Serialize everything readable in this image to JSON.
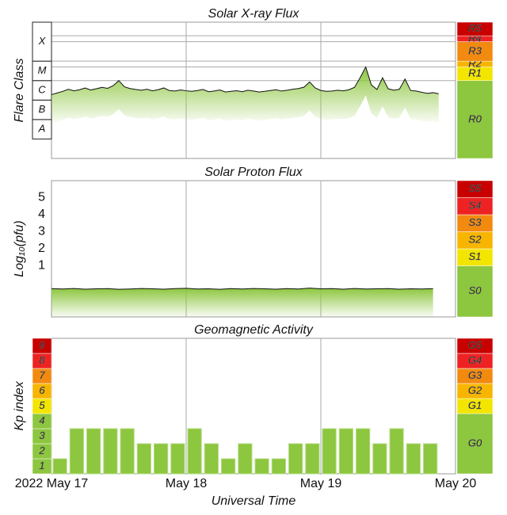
{
  "chart_data": [
    {
      "type": "line",
      "title": "Solar X-ray Flux",
      "ylabel": "Flare Class",
      "log_scale": true,
      "ylim": [
        1e-09,
        0.01
      ],
      "color": "#111111",
      "fill": "#8dc63f",
      "x": [
        0,
        1,
        2,
        3,
        4,
        5,
        6,
        7,
        8,
        9,
        10,
        11,
        12,
        13,
        14,
        15,
        16,
        17,
        18,
        19,
        20,
        21,
        22,
        23,
        24,
        25,
        26,
        27,
        28,
        29,
        30,
        31,
        32,
        33,
        34,
        35,
        36,
        37,
        38,
        39,
        40,
        41,
        42,
        43,
        44,
        45,
        46,
        47,
        48,
        49,
        50,
        51,
        52,
        53,
        54,
        55,
        56,
        57,
        58,
        59,
        60,
        61,
        62,
        63,
        64,
        65,
        66,
        67,
        68,
        69
      ],
      "values": [
        1.9e-06,
        2.3e-06,
        2.8e-06,
        3.6e-06,
        3e-06,
        3.4e-06,
        4.2e-06,
        3.3e-06,
        3.8e-06,
        4.5e-06,
        4e-06,
        5.5e-06,
        1e-05,
        4.8e-06,
        3.9e-06,
        3.5e-06,
        3.2e-06,
        3.6e-06,
        3e-06,
        3.4e-06,
        4.2e-06,
        3.1e-06,
        2.9e-06,
        3.3e-06,
        3e-06,
        2.8e-06,
        3.1e-06,
        3.5e-06,
        2.7e-06,
        2.9e-06,
        3.3e-06,
        2.6e-06,
        2.8e-06,
        3e-06,
        2.7e-06,
        3.2e-06,
        2.9e-06,
        2.6e-06,
        2.8e-06,
        3.1e-06,
        3.4e-06,
        2.9e-06,
        3.2e-06,
        3.6e-06,
        3.9e-06,
        4.6e-06,
        8.5e-06,
        4.2e-06,
        3.1e-06,
        2.8e-06,
        2.9e-06,
        3.2e-06,
        3e-06,
        3.4e-06,
        4.5e-06,
        1.4e-05,
        5e-05,
        6e-06,
        3.5e-06,
        1.4e-05,
        3.8e-06,
        3.2e-06,
        3.6e-06,
        1.2e-05,
        3.1e-06,
        2.9e-06,
        2.5e-06,
        2.2e-06,
        2.4e-06,
        2.1e-06
      ],
      "yticks": [
        {
          "value": 1e-08,
          "label": "A"
        },
        {
          "value": 1e-07,
          "label": "B"
        },
        {
          "value": 1e-06,
          "label": "C"
        },
        {
          "value": 1e-05,
          "label": "M"
        },
        {
          "value": 0.0001,
          "label": "X"
        }
      ],
      "levels": [
        {
          "label": "R0",
          "color": "#8dc63f"
        },
        {
          "label": "R1",
          "value": 1e-05,
          "color": "#f2e600"
        },
        {
          "label": "R2",
          "value": 5e-05,
          "color": "#f7b500"
        },
        {
          "label": "R3",
          "value": 0.0001,
          "color": "#f28a10"
        },
        {
          "label": "R4",
          "value": 0.001,
          "color": "#ee2222"
        },
        {
          "label": "R5",
          "value": 0.002,
          "color": "#c80000"
        }
      ]
    },
    {
      "type": "line",
      "title": "Solar Proton Flux",
      "ylabel": "Log₁₀(pfu)",
      "ylim": [
        -2,
        6
      ],
      "yticks": [
        1,
        2,
        3,
        4,
        5
      ],
      "color": "#111111",
      "fill": "#8dc63f",
      "x": [
        0,
        2,
        4,
        6,
        8,
        10,
        12,
        14,
        16,
        18,
        20,
        22,
        24,
        26,
        28,
        30,
        32,
        34,
        36,
        38,
        40,
        42,
        44,
        46,
        48,
        50,
        52,
        54,
        56,
        58,
        60,
        62,
        64,
        66,
        68
      ],
      "values": [
        -0.34,
        -0.36,
        -0.33,
        -0.37,
        -0.35,
        -0.34,
        -0.38,
        -0.36,
        -0.33,
        -0.35,
        -0.37,
        -0.34,
        -0.32,
        -0.36,
        -0.35,
        -0.38,
        -0.34,
        -0.36,
        -0.33,
        -0.35,
        -0.37,
        -0.34,
        -0.36,
        -0.31,
        -0.35,
        -0.34,
        -0.37,
        -0.33,
        -0.36,
        -0.35,
        -0.34,
        -0.37,
        -0.35,
        -0.36,
        -0.34
      ],
      "levels": [
        {
          "label": "S0",
          "color": "#8dc63f"
        },
        {
          "label": "S1",
          "value": 1,
          "color": "#f2e600"
        },
        {
          "label": "S2",
          "value": 2,
          "color": "#f7b500"
        },
        {
          "label": "S3",
          "value": 3,
          "color": "#f28a10"
        },
        {
          "label": "S4",
          "value": 4,
          "color": "#ee2222"
        },
        {
          "label": "S5",
          "value": 5,
          "color": "#c80000"
        }
      ]
    },
    {
      "type": "bar",
      "title": "Geomagnetic Activity",
      "ylabel": "Kp index",
      "ylim": [
        0,
        9
      ],
      "yticks": [
        1,
        2,
        3,
        4,
        5,
        6,
        7,
        8,
        9
      ],
      "ytick_colors": [
        "#8dc63f",
        "#8dc63f",
        "#8dc63f",
        "#8dc63f",
        "#f2e600",
        "#f7b500",
        "#f28a10",
        "#ee2222",
        "#c80000"
      ],
      "color": "#8dc63f",
      "x": [
        0,
        3,
        6,
        9,
        12,
        15,
        18,
        21,
        24,
        27,
        30,
        33,
        36,
        39,
        42,
        45,
        48,
        51,
        54,
        57,
        60,
        63,
        66
      ],
      "values": [
        1,
        3,
        3,
        3,
        3,
        2,
        2,
        2,
        3,
        2,
        1,
        2,
        1,
        1,
        2,
        2,
        3,
        3,
        3,
        2,
        3,
        2,
        2
      ],
      "levels": [
        {
          "label": "G0",
          "color": "#8dc63f"
        },
        {
          "label": "G1",
          "value": 4,
          "color": "#f2e600"
        },
        {
          "label": "G2",
          "value": 5,
          "color": "#f7b500"
        },
        {
          "label": "G3",
          "value": 6,
          "color": "#f28a10"
        },
        {
          "label": "G4",
          "value": 7,
          "color": "#ee2222"
        },
        {
          "label": "G5",
          "value": 8,
          "color": "#c80000"
        }
      ]
    }
  ],
  "xaxis": {
    "xlim": [
      0,
      72
    ],
    "xlabel": "Universal Time",
    "xticks": [
      {
        "value": 0,
        "label": "2022 May 17"
      },
      {
        "value": 24,
        "label": "May 18"
      },
      {
        "value": 48,
        "label": "May 19"
      },
      {
        "value": 72,
        "label": "May 20"
      }
    ]
  }
}
